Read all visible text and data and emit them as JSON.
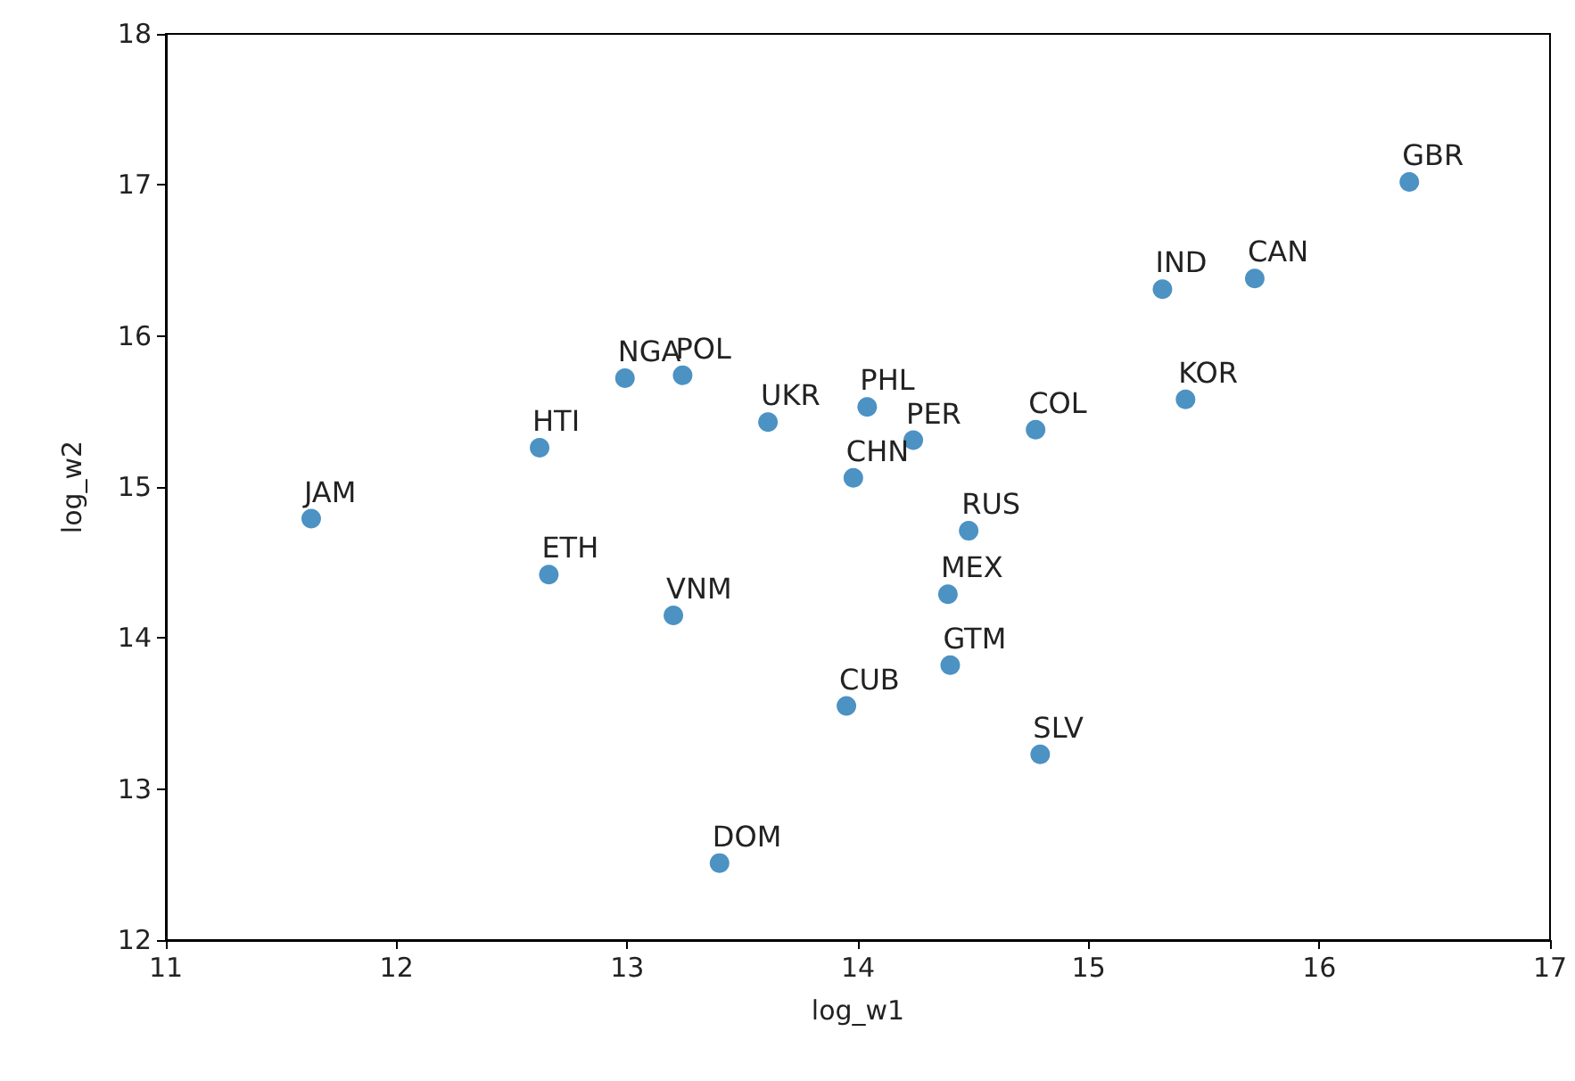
{
  "chart_data": {
    "type": "scatter",
    "xlabel": "log_w1",
    "ylabel": "log_w2",
    "x": [
      11.63,
      12.62,
      12.66,
      12.99,
      13.24,
      13.2,
      13.61,
      13.4,
      14.04,
      13.98,
      14.24,
      13.95,
      14.48,
      14.39,
      14.4,
      14.77,
      14.79,
      15.32,
      15.72,
      15.42,
      16.39
    ],
    "values": [
      14.79,
      15.26,
      14.42,
      15.72,
      15.74,
      14.15,
      15.43,
      12.51,
      15.53,
      15.06,
      15.31,
      13.55,
      14.71,
      14.29,
      13.82,
      15.38,
      13.23,
      16.31,
      16.38,
      15.58,
      17.02
    ],
    "color": "#1f77b4",
    "marker": "circle",
    "grid": false,
    "xlim": [
      11,
      17
    ],
    "xticks": [
      11,
      12,
      13,
      14,
      15,
      16,
      17
    ],
    "ylim": [
      12,
      18
    ],
    "yticks": [
      12,
      13,
      14,
      15,
      16,
      17,
      18
    ],
    "annotations": [
      {
        "text": "JAM",
        "x": 11.63,
        "y": 14.79
      },
      {
        "text": "HTI",
        "x": 12.62,
        "y": 15.26
      },
      {
        "text": "ETH",
        "x": 12.66,
        "y": 14.42
      },
      {
        "text": "NGA",
        "x": 12.99,
        "y": 15.72
      },
      {
        "text": "POL",
        "x": 13.24,
        "y": 15.74
      },
      {
        "text": "VNM",
        "x": 13.2,
        "y": 14.15
      },
      {
        "text": "UKR",
        "x": 13.61,
        "y": 15.43
      },
      {
        "text": "DOM",
        "x": 13.4,
        "y": 12.51
      },
      {
        "text": "PHL",
        "x": 14.04,
        "y": 15.53
      },
      {
        "text": "CHN",
        "x": 13.98,
        "y": 15.06
      },
      {
        "text": "PER",
        "x": 14.24,
        "y": 15.31
      },
      {
        "text": "CUB",
        "x": 13.95,
        "y": 13.55
      },
      {
        "text": "RUS",
        "x": 14.48,
        "y": 14.71
      },
      {
        "text": "MEX",
        "x": 14.39,
        "y": 14.29
      },
      {
        "text": "GTM",
        "x": 14.4,
        "y": 13.82
      },
      {
        "text": "COL",
        "x": 14.77,
        "y": 15.38
      },
      {
        "text": "SLV",
        "x": 14.79,
        "y": 13.23
      },
      {
        "text": "IND",
        "x": 15.32,
        "y": 16.31
      },
      {
        "text": "CAN",
        "x": 15.72,
        "y": 16.38
      },
      {
        "text": "KOR",
        "x": 15.42,
        "y": 15.58
      },
      {
        "text": "GBR",
        "x": 16.39,
        "y": 17.02
      }
    ]
  }
}
